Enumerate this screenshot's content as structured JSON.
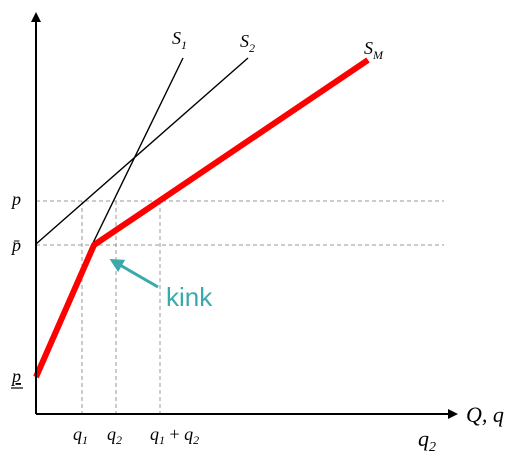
{
  "colors": {
    "axis": "#000000",
    "supply_line": "#000000",
    "market_supply": "#ff0000",
    "guide": "#999999",
    "annotation": "#3aa9a9"
  },
  "curves": {
    "s1": {
      "base": "S",
      "sub": "1"
    },
    "s2": {
      "base": "S",
      "sub": "2"
    },
    "sm": {
      "base": "S",
      "sub": "M"
    }
  },
  "y_labels": {
    "p": "p",
    "p_bar": "p̄",
    "p_under": "p"
  },
  "x_labels": {
    "q1": {
      "base": "q",
      "sub": "1"
    },
    "q2": {
      "base": "q",
      "sub": "2"
    },
    "q1_plus_q2": {
      "a": "q",
      "a_sub": "1",
      "plus": " + ",
      "b": "q",
      "b_sub": "2"
    }
  },
  "axis_labels": {
    "x_axis": "Q, q",
    "x_axis_sub": {
      "base": "q",
      "sub": "2"
    }
  },
  "annotation": {
    "text": "kink"
  }
}
